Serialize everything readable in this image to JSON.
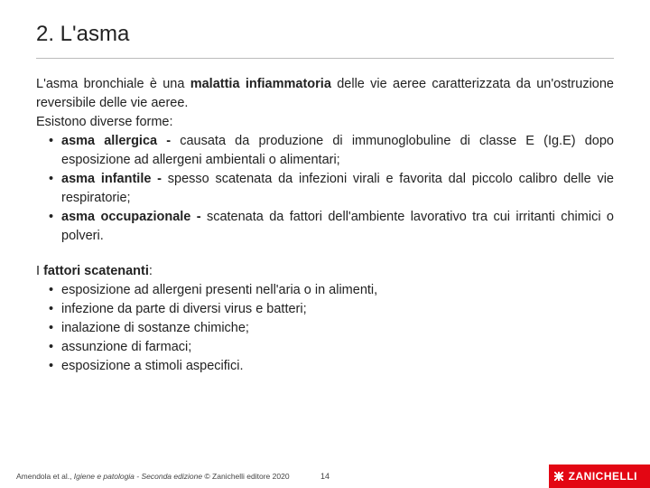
{
  "title": "2. L'asma",
  "intro_html": "L'asma bronchiale è una <strong>malattia infiammatoria</strong> delle vie aeree caratterizzata da un'ostruzione reversibile delle vie aeree.",
  "forms_intro": "Esistono diverse forme:",
  "forms": [
    "<strong>asma allergica -</strong> causata da produzione di immunoglobuline di classe E (Ig.E) dopo esposizione ad allergeni ambientali o alimentari;",
    "<strong>asma infantile -</strong> spesso scatenata da infezioni virali e favorita dal piccolo calibro delle vie respiratorie;",
    "<strong>asma occupazionale -</strong> scatenata da fattori dell'ambiente lavorativo tra cui irritanti chimici o polveri."
  ],
  "factors_intro_html": "I <strong>fattori scatenanti</strong>:",
  "factors": [
    "esposizione ad allergeni presenti nell'aria o in alimenti,",
    "infezione da parte di diversi virus e batteri;",
    "inalazione di sostanze chimiche;",
    "assunzione di farmaci;",
    "esposizione a stimoli aspecifici."
  ],
  "footer_citation_html": "Amendola et al., <span class=\"ital\">Igiene e patologia - Seconda edizione</span> © Zanichelli editore 2020",
  "page_number": "14",
  "logo_text": "ZANICHELLI",
  "colors": {
    "logo_bg": "#e30613",
    "text": "#222222",
    "hr": "#bcbcbc"
  }
}
